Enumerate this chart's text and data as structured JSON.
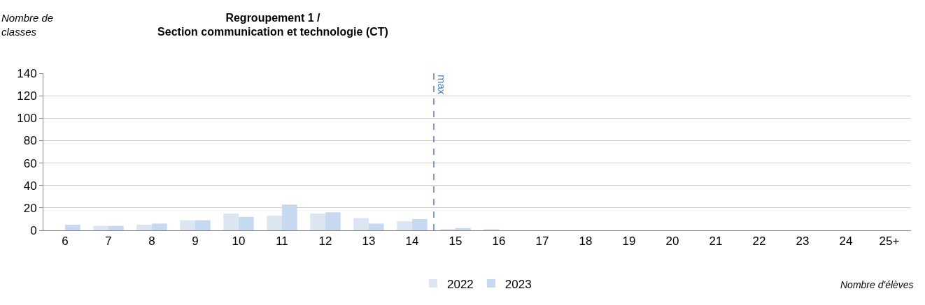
{
  "chart_data": {
    "type": "bar",
    "title": "Regroupement 1 /\nSection communication et technologie (CT)",
    "xlabel": "Nombre d'élèves",
    "ylabel": "Nombre de\nclasses",
    "x": [
      6,
      7,
      8,
      9,
      10,
      11,
      12,
      13,
      14,
      15,
      16,
      17,
      18,
      19,
      20,
      21,
      22,
      23,
      24,
      25
    ],
    "series": [
      {
        "name": "2022",
        "color": "#dce6f2",
        "values": [
          0,
          4,
          5,
          9,
          15,
          13,
          15,
          11,
          8,
          1,
          1,
          0,
          0,
          0,
          0,
          0,
          0,
          0,
          0,
          0
        ]
      },
      {
        "name": "2023",
        "color": "#c6d9f0",
        "values": [
          5,
          4,
          6,
          9,
          12,
          23,
          16,
          6,
          10,
          2,
          0,
          0,
          0,
          0,
          0,
          0,
          0,
          0,
          0,
          0
        ]
      }
    ],
    "xlim": [
      5.5,
      25.5
    ],
    "xticks": [
      6,
      7,
      8,
      9,
      10,
      11,
      12,
      13,
      14,
      15,
      16,
      17,
      18,
      19,
      20,
      21,
      22,
      23,
      24,
      {
        "value": 25,
        "label": "25+"
      }
    ],
    "ylim": [
      0,
      140
    ],
    "yticks": [
      0,
      20,
      40,
      60,
      80,
      100,
      120,
      140
    ],
    "ref_lines": [
      {
        "axis": "x",
        "value": 14.5,
        "label": "max",
        "color": "#4a7ebb",
        "line_style": "dashed"
      }
    ],
    "grid": "y",
    "legend": "bottom"
  }
}
